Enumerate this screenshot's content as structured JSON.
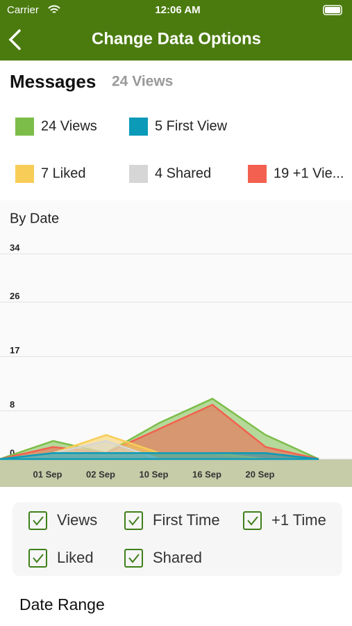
{
  "status_bar": {
    "carrier": "Carrier",
    "time": "12:06 AM"
  },
  "nav": {
    "title": "Change Data Options"
  },
  "header": {
    "title": "Messages",
    "subtitle": "24 Views"
  },
  "chart_data": {
    "type": "area",
    "title": "By Date",
    "categories": [
      null,
      "01 Sep",
      "02 Sep",
      "10 Sep",
      "16 Sep",
      "20 Sep",
      null
    ],
    "ylim": [
      0,
      34
    ],
    "yticks": [
      0,
      8,
      17,
      26,
      34
    ],
    "grid": true,
    "series": [
      {
        "name": "24 Views",
        "color": "#7cbd4a",
        "values": [
          0,
          3,
          1,
          6,
          10,
          4,
          0
        ]
      },
      {
        "name": "5 First View",
        "color": "#0b9ab8",
        "values": [
          0,
          1,
          1,
          1,
          1,
          1,
          0
        ]
      },
      {
        "name": "7 Liked",
        "color": "#f8cd57",
        "values": [
          0,
          1,
          4,
          1,
          1,
          0,
          0
        ]
      },
      {
        "name": "4 Shared",
        "color": "#d6d6d6",
        "values": [
          0,
          1,
          3,
          0,
          0,
          0,
          0
        ]
      },
      {
        "name": "19 +1 Vie...",
        "color": "#f3604f",
        "values": [
          0,
          2,
          1,
          5,
          9,
          2,
          0
        ]
      }
    ]
  },
  "options": {
    "items": [
      "Views",
      "First Time",
      "+1 Time",
      "Liked",
      "Shared"
    ]
  },
  "date_range": {
    "title": "Date Range"
  }
}
